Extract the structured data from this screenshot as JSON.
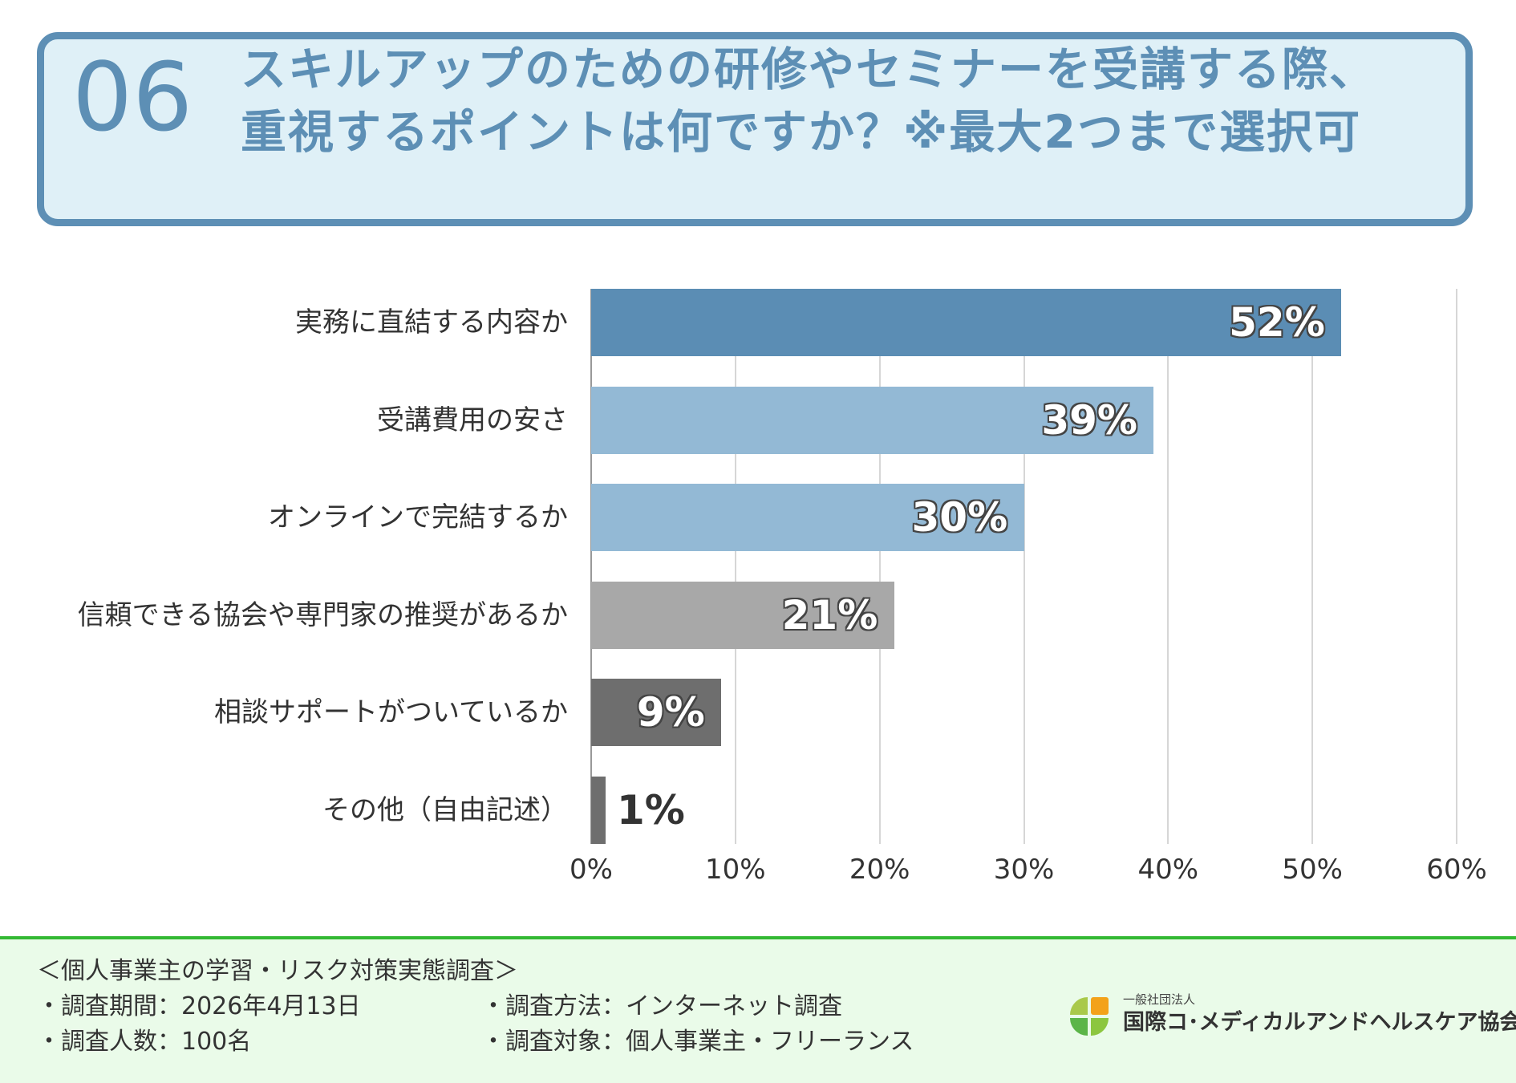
{
  "header": {
    "number": "06",
    "title_line1": "スキルアップのための研修やセミナーを受講する際、",
    "title_line2": "重視するポイントは何ですか？※最大2つまで選択可"
  },
  "chart_data": {
    "type": "bar",
    "orientation": "horizontal",
    "categories": [
      "実務に直結する内容か",
      "受講費用の安さ",
      "オンラインで完結するか",
      "信頼できる協会や専門家の推奨があるか",
      "相談サポートがついているか",
      "その他（自由記述）"
    ],
    "values": [
      52,
      39,
      30,
      21,
      9,
      1
    ],
    "value_labels": [
      "52%",
      "39%",
      "30%",
      "21%",
      "9%",
      "1%"
    ],
    "bar_colors": [
      "#5b8db4",
      "#93b9d5",
      "#93b9d5",
      "#a8a8a8",
      "#6e6e6e",
      "#6e6e6e"
    ],
    "xlim": [
      0,
      60
    ],
    "xticks": [
      0,
      10,
      20,
      30,
      40,
      50,
      60
    ],
    "xtick_labels": [
      "0%",
      "10%",
      "20%",
      "30%",
      "40%",
      "50%",
      "60%"
    ],
    "grid": true,
    "title": "",
    "xlabel": "",
    "ylabel": ""
  },
  "footer": {
    "survey_title": "＜個人事業主の学習・リスク対策実態調査＞",
    "period": "・調査期間：2026年4月13日",
    "respondents": "・調査人数：100名",
    "method": "・調査方法：インターネット調査",
    "target": "・調査対象：個人事業主・フリーランス",
    "org_small": "一般社団法人",
    "org_name": "国際コ･メディカルアンドヘルスケア協会"
  },
  "colors": {
    "accent": "#5d8fb5",
    "header_bg": "#dff0f7",
    "footer_bg": "#eafbe9",
    "footer_border": "#33b933"
  }
}
